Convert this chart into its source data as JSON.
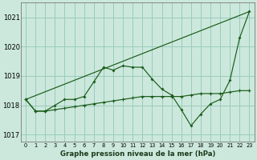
{
  "background_color": "#cce8dc",
  "grid_color": "#99ccbb",
  "line_color": "#1a5c1a",
  "title": "Graphe pression niveau de la mer (hPa)",
  "ylabel_ticks": [
    1017,
    1018,
    1019,
    1020,
    1021
  ],
  "xlim": [
    -0.5,
    23.5
  ],
  "ylim": [
    1016.75,
    1021.5
  ],
  "series_main_x": [
    0,
    1,
    2,
    3,
    4,
    5,
    6,
    7,
    8,
    9,
    10,
    11,
    12,
    13,
    14,
    15,
    16,
    17,
    18,
    19,
    20,
    21,
    22,
    23
  ],
  "series_main_y": [
    1018.2,
    1017.8,
    1017.8,
    1018.0,
    1018.2,
    1018.2,
    1018.3,
    1018.8,
    1019.3,
    1019.2,
    1019.35,
    1019.3,
    1019.3,
    1018.9,
    1018.55,
    1018.35,
    1017.85,
    1017.3,
    1017.7,
    1018.05,
    1018.2,
    1018.85,
    1020.3,
    1021.2
  ],
  "series_flat_x": [
    0,
    1,
    2,
    3,
    4,
    5,
    6,
    7,
    8,
    9,
    10,
    11,
    12,
    13,
    14,
    15,
    16,
    17,
    18,
    19,
    20,
    21,
    22,
    23
  ],
  "series_flat_y": [
    1018.2,
    1017.8,
    1017.8,
    1017.85,
    1017.9,
    1017.95,
    1018.0,
    1018.05,
    1018.1,
    1018.15,
    1018.2,
    1018.25,
    1018.3,
    1018.3,
    1018.3,
    1018.3,
    1018.3,
    1018.35,
    1018.4,
    1018.4,
    1018.4,
    1018.45,
    1018.5,
    1018.5
  ],
  "series_trend_x": [
    0,
    23
  ],
  "series_trend_y": [
    1018.2,
    1021.2
  ]
}
